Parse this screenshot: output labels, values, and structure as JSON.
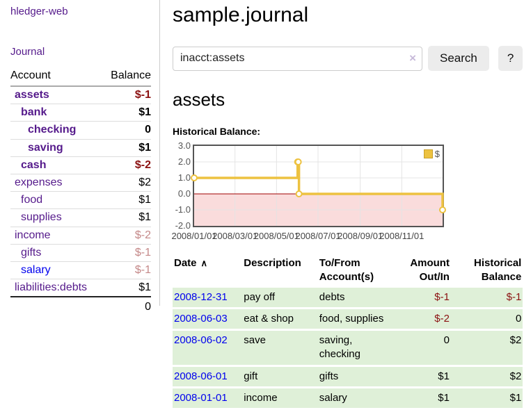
{
  "app": {
    "brand": "hledger-web"
  },
  "icons": {
    "sort_asc": "∧",
    "clear": "×"
  },
  "sidebar": {
    "journal_link": "Journal",
    "accounts": {
      "account_header": "Account",
      "balance_header": "Balance",
      "rows": [
        {
          "name": "assets",
          "balance": "$-1",
          "indent": 1,
          "bold": true,
          "neg": "strong"
        },
        {
          "name": "bank",
          "balance": "$1",
          "indent": 2,
          "bold": true,
          "neg": null
        },
        {
          "name": "checking",
          "balance": "0",
          "indent": 3,
          "bold": true,
          "neg": null
        },
        {
          "name": "saving",
          "balance": "$1",
          "indent": 3,
          "bold": true,
          "neg": null
        },
        {
          "name": "cash",
          "balance": "$-2",
          "indent": 2,
          "bold": true,
          "neg": "strong"
        },
        {
          "name": "expenses",
          "balance": "$2",
          "indent": 1,
          "bold": false,
          "neg": null
        },
        {
          "name": "food",
          "balance": "$1",
          "indent": 2,
          "bold": false,
          "neg": null
        },
        {
          "name": "supplies",
          "balance": "$1",
          "indent": 2,
          "bold": false,
          "neg": null
        },
        {
          "name": "income",
          "balance": "$-2",
          "indent": 1,
          "bold": false,
          "neg": "soft"
        },
        {
          "name": "gifts",
          "balance": "$-1",
          "indent": 2,
          "bold": false,
          "neg": "soft"
        },
        {
          "name": "salary",
          "balance": "$-1",
          "indent": 2,
          "bold": false,
          "neg": "soft",
          "blue": true
        },
        {
          "name": "liabilities:debts",
          "balance": "$1",
          "indent": 1,
          "bold": false,
          "neg": null
        }
      ],
      "total": "0"
    }
  },
  "main": {
    "title": "sample.journal",
    "search": {
      "value": "inacct:assets",
      "button": "Search",
      "help_button": "?"
    },
    "heading": "assets",
    "chart_label": "Historical Balance:"
  },
  "chart_data": {
    "type": "line",
    "step": true,
    "title": "Historical Balance",
    "series": [
      {
        "name": "$",
        "color": "#edc240",
        "points": [
          [
            "2008-01-01",
            1
          ],
          [
            "2008-06-01",
            2
          ],
          [
            "2008-06-02",
            2
          ],
          [
            "2008-06-03",
            0
          ],
          [
            "2008-12-31",
            -1
          ]
        ]
      }
    ],
    "xlim": [
      "2008-01-01",
      "2008-12-31"
    ],
    "ylim": [
      -2,
      3
    ],
    "x_ticks": [
      "2008/01/01",
      "2008/03/01",
      "2008/05/01",
      "2008/07/01",
      "2008/09/01",
      "2008/11/01"
    ],
    "y_ticks": [
      3.0,
      2.0,
      1.0,
      0.0,
      -1.0,
      -2.0
    ],
    "legend": [
      "$"
    ],
    "legend_position": "top-right",
    "grid": true,
    "colors": {
      "negative_fill": "#fadcdc",
      "zero_line": "#a00000",
      "grid_line": "#e4e4e4",
      "border": "#545454"
    }
  },
  "register": {
    "columns": [
      "Date",
      "Description",
      "To/From Account(s)",
      "Amount Out/In",
      "Historical Balance"
    ],
    "rows": [
      {
        "date": "2008-12-31",
        "description": "pay off",
        "accounts": "debts",
        "amount": "$-1",
        "balance": "$-1"
      },
      {
        "date": "2008-06-03",
        "description": "eat & shop",
        "accounts": "food, supplies",
        "amount": "$-2",
        "balance": "0"
      },
      {
        "date": "2008-06-02",
        "description": "save",
        "accounts": "saving, checking",
        "amount": "0",
        "balance": "$2"
      },
      {
        "date": "2008-06-01",
        "description": "gift",
        "accounts": "gifts",
        "amount": "$1",
        "balance": "$2"
      },
      {
        "date": "2008-01-01",
        "description": "income",
        "accounts": "salary",
        "amount": "$1",
        "balance": "$1"
      }
    ]
  }
}
